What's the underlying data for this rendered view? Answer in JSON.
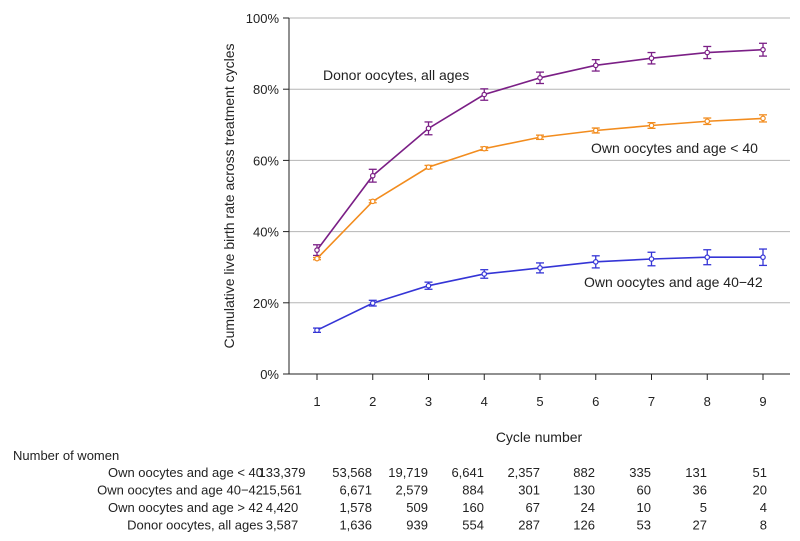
{
  "chart_data": {
    "type": "line",
    "ylabel": "Cumulative live birth rate across treatment cycles",
    "xlabel": "Cycle number",
    "x": [
      1,
      2,
      3,
      4,
      5,
      6,
      7,
      8,
      9
    ],
    "ylim": [
      0,
      100
    ],
    "yticks": [
      0,
      20,
      40,
      60,
      80,
      100
    ],
    "ytick_labels": [
      "0%",
      "20%",
      "40%",
      "60%",
      "80%",
      "100%"
    ],
    "grid": "horizontal",
    "series": [
      {
        "name": "Donor oocytes, all ages",
        "label": "Donor oocytes, all ages",
        "color": "#7b1f86",
        "values": [
          34.8,
          55.7,
          69.0,
          78.5,
          83.2,
          86.7,
          88.7,
          90.3,
          91.1
        ],
        "err": [
          1.5,
          1.8,
          1.8,
          1.6,
          1.6,
          1.6,
          1.6,
          1.7,
          1.8
        ]
      },
      {
        "name": "Own oocytes and age < 40",
        "label": "Own oocytes and age < 40",
        "color": "#f28c1e",
        "values": [
          32.4,
          48.5,
          58.1,
          63.3,
          66.5,
          68.4,
          69.8,
          71.0,
          71.8
        ],
        "err": [
          0.3,
          0.4,
          0.5,
          0.5,
          0.6,
          0.7,
          0.8,
          0.9,
          1.0
        ]
      },
      {
        "name": "Own oocytes and age 40−42",
        "label": "Own oocytes and age 40−42",
        "color": "#3535d6",
        "values": [
          12.3,
          19.9,
          24.8,
          28.1,
          29.8,
          31.5,
          32.3,
          32.8,
          32.8
        ],
        "err": [
          0.6,
          0.8,
          1.0,
          1.2,
          1.4,
          1.7,
          1.9,
          2.1,
          2.3
        ]
      }
    ]
  },
  "risk_table": {
    "title": "Number of women",
    "rows": [
      {
        "label": "Own oocytes and age < 40",
        "values": [
          "133,379",
          "53,568",
          "19,719",
          "6,641",
          "2,357",
          "882",
          "335",
          "131",
          "51"
        ]
      },
      {
        "label": "Own oocytes and age 40−42",
        "values": [
          "15,561",
          "6,671",
          "2,579",
          "884",
          "301",
          "130",
          "60",
          "36",
          "20"
        ]
      },
      {
        "label": "Own oocytes and age > 42",
        "values": [
          "4,420",
          "1,578",
          "509",
          "160",
          "67",
          "24",
          "10",
          "5",
          "4"
        ]
      },
      {
        "label": "Donor oocytes, all ages",
        "values": [
          "3,587",
          "1,636",
          "939",
          "554",
          "287",
          "126",
          "53",
          "27",
          "8"
        ]
      }
    ]
  }
}
